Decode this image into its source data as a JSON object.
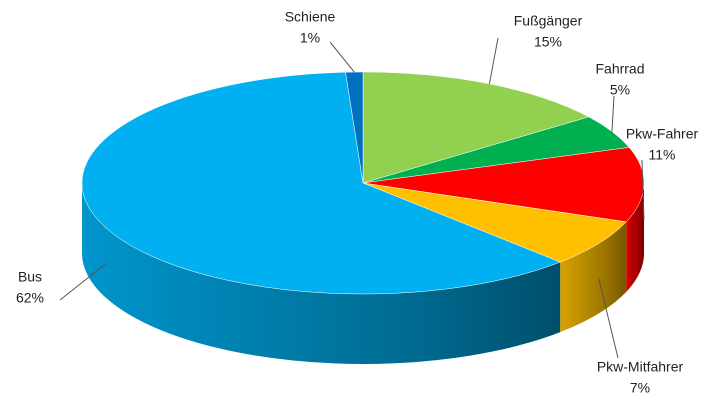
{
  "chart_data": {
    "type": "pie3d",
    "categories": [
      "Fußgänger",
      "Fahrrad",
      "Pkw-Fahrer",
      "Pkw-Mitfahrer",
      "Bus",
      "Schiene"
    ],
    "values": [
      15,
      5,
      11,
      7,
      62,
      1
    ],
    "value_labels": [
      "15%",
      "5%",
      "11%",
      "7%",
      "62%",
      "1%"
    ],
    "colors": [
      "#92d050",
      "#00b050",
      "#ff0000",
      "#ffc000",
      "#00b0f0",
      "#0070c0"
    ]
  }
}
